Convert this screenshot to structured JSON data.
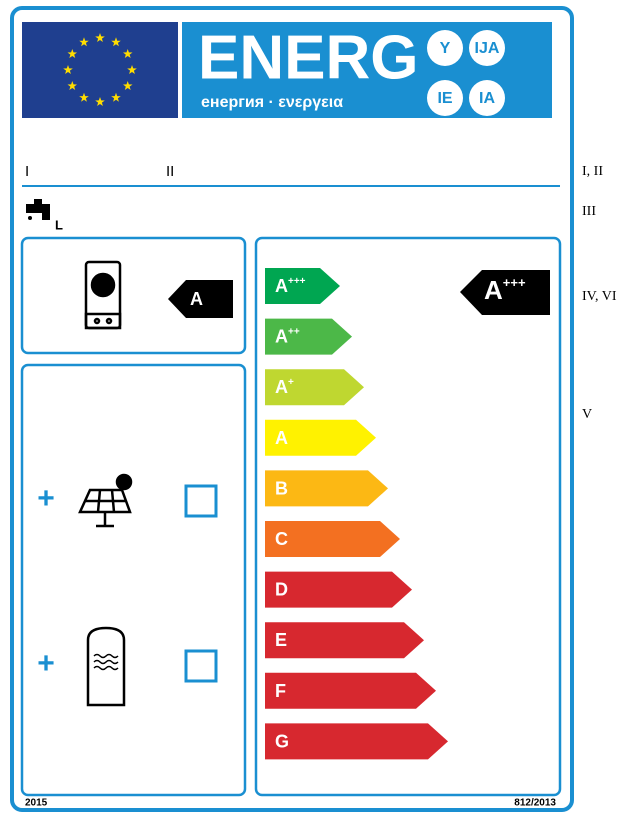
{
  "header": {
    "logo": "ENERG",
    "subtitle": "енергия · ενεργεια",
    "badges": [
      "Y",
      "IJA",
      "IE",
      "IA"
    ]
  },
  "fields": [
    "I",
    "II"
  ],
  "tap_unit": "L",
  "heater_class": "A",
  "package_class": {
    "letter": "A",
    "sup": "+++"
  },
  "scale": [
    {
      "letter": "A",
      "sup": "+++",
      "color": "#00a651"
    },
    {
      "letter": "A",
      "sup": "++",
      "color": "#4cb848"
    },
    {
      "letter": "A",
      "sup": "+",
      "color": "#bfd730"
    },
    {
      "letter": "A",
      "sup": "",
      "color": "#fff200"
    },
    {
      "letter": "B",
      "sup": "",
      "color": "#fcb814"
    },
    {
      "letter": "C",
      "sup": "",
      "color": "#f37021"
    },
    {
      "letter": "D",
      "sup": "",
      "color": "#d7282f"
    },
    {
      "letter": "E",
      "sup": "",
      "color": "#d7282f"
    },
    {
      "letter": "F",
      "sup": "",
      "color": "#d7282f"
    },
    {
      "letter": "G",
      "sup": "",
      "color": "#d7282f"
    }
  ],
  "footer": {
    "year": "2015",
    "regulation": "812/2013"
  },
  "notes": [
    "I, II",
    "III",
    "IV, VI",
    "V"
  ]
}
